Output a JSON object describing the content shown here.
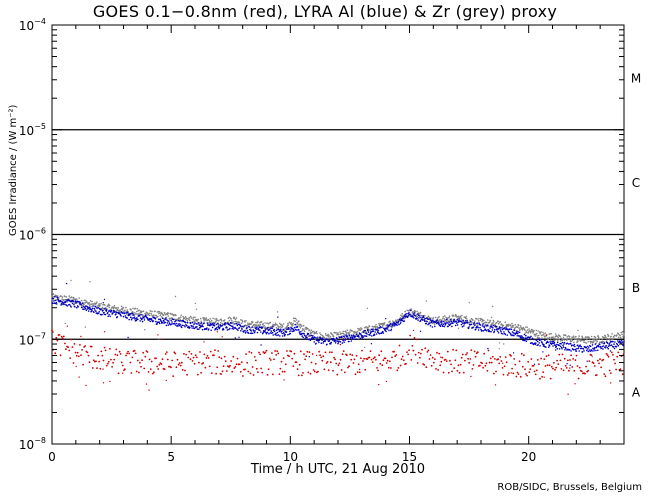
{
  "chart_data": {
    "type": "scatter",
    "title": "GOES 0.1−0.8nm (red), LYRA Al (blue) & Zr (grey) proxy",
    "xlabel": "Time / h UTC, 21 Aug 2010",
    "ylabel": "GOES Irradiance / (W m⁻²)",
    "credit": "ROB/SIDC, Brussels, Belgium",
    "yscale": "log",
    "xlim": [
      0,
      24
    ],
    "ylim": [
      1e-08,
      0.0001
    ],
    "x_ticks": [
      {
        "value": 0,
        "label": "0"
      },
      {
        "value": 5,
        "label": "5"
      },
      {
        "value": 10,
        "label": "10"
      },
      {
        "value": 15,
        "label": "15"
      },
      {
        "value": 20,
        "label": "20"
      }
    ],
    "y_ticks": [
      {
        "value": 1e-08,
        "base": "10",
        "exp": "−8"
      },
      {
        "value": 1e-07,
        "base": "10",
        "exp": "−7"
      },
      {
        "value": 1e-06,
        "base": "10",
        "exp": "−6"
      },
      {
        "value": 1e-05,
        "base": "10",
        "exp": "−5"
      },
      {
        "value": 0.0001,
        "base": "10",
        "exp": "−4"
      }
    ],
    "reference_lines": [
      1e-07,
      1e-06,
      1e-05
    ],
    "flare_classes": [
      {
        "label": "A",
        "value": 3.16e-08
      },
      {
        "label": "B",
        "value": 3.16e-07
      },
      {
        "label": "C",
        "value": 3.16e-06
      },
      {
        "label": "M",
        "value": 3.16e-05
      }
    ],
    "series": [
      {
        "name": "LYRA Zr proxy",
        "color": "#808080",
        "x": [
          0,
          1,
          2,
          3,
          4,
          5,
          6,
          7,
          7.7,
          8,
          9,
          9.8,
          10.2,
          10.6,
          11,
          11.5,
          12,
          13,
          14,
          14.5,
          15,
          15.3,
          16,
          17,
          18,
          19,
          19.5,
          20,
          20.5,
          21,
          21.5,
          22,
          22.5,
          23,
          23.5,
          24
        ],
        "y": [
          2.5e-07,
          2.35e-07,
          2.05e-07,
          1.9e-07,
          1.75e-07,
          1.65e-07,
          1.5e-07,
          1.45e-07,
          1.55e-07,
          1.4e-07,
          1.35e-07,
          1.3e-07,
          1.5e-07,
          1.25e-07,
          1.1e-07,
          1.05e-07,
          1.08e-07,
          1.2e-07,
          1.35e-07,
          1.5e-07,
          1.85e-07,
          1.75e-07,
          1.5e-07,
          1.6e-07,
          1.45e-07,
          1.35e-07,
          1.3e-07,
          1.2e-07,
          1.1e-07,
          1.05e-07,
          1.02e-07,
          1e-07,
          9.8e-08,
          1e-07,
          1.05e-07,
          1.1e-07
        ]
      },
      {
        "name": "LYRA Al proxy",
        "color": "#0000c0",
        "x": [
          0,
          1,
          2,
          3,
          4,
          5,
          6,
          7,
          7.7,
          8,
          9,
          9.8,
          10.2,
          10.6,
          11,
          11.5,
          12,
          13,
          14,
          14.5,
          15,
          15.3,
          16,
          17,
          18,
          19,
          19.5,
          20,
          20.5,
          21,
          21.5,
          22,
          22.5,
          23,
          23.5,
          24
        ],
        "y": [
          2.4e-07,
          2.15e-07,
          1.85e-07,
          1.7e-07,
          1.55e-07,
          1.45e-07,
          1.35e-07,
          1.3e-07,
          1.35e-07,
          1.25e-07,
          1.2e-07,
          1.15e-07,
          1.3e-07,
          1.1e-07,
          9.8e-08,
          9.5e-08,
          9.7e-08,
          1.1e-07,
          1.25e-07,
          1.4e-07,
          1.8e-07,
          1.65e-07,
          1.4e-07,
          1.45e-07,
          1.3e-07,
          1.2e-07,
          1.12e-07,
          1e-07,
          9.2e-08,
          8.8e-08,
          8.6e-08,
          8.2e-08,
          8e-08,
          8.5e-08,
          8.8e-08,
          9e-08
        ]
      },
      {
        "name": "GOES 0.1-0.8nm",
        "color": "#d00000",
        "x": [
          0,
          0.5,
          1,
          2,
          3,
          4,
          5,
          6,
          7,
          8,
          9,
          10,
          11,
          12,
          13,
          14,
          14.7,
          15,
          15.5,
          16,
          17,
          18,
          19,
          20,
          21,
          22,
          23,
          24
        ],
        "y": [
          9.5e-08,
          8.5e-08,
          7.5e-08,
          6.5e-08,
          6e-08,
          6e-08,
          5.8e-08,
          6e-08,
          6e-08,
          5.8e-08,
          6e-08,
          6e-08,
          5.8e-08,
          5.8e-08,
          6e-08,
          6.2e-08,
          6.8e-08,
          8.5e-08,
          7.5e-08,
          6.6e-08,
          6e-08,
          6e-08,
          5.8e-08,
          5.5e-08,
          5.5e-08,
          5.5e-08,
          5.7e-08,
          6e-08
        ]
      }
    ]
  }
}
